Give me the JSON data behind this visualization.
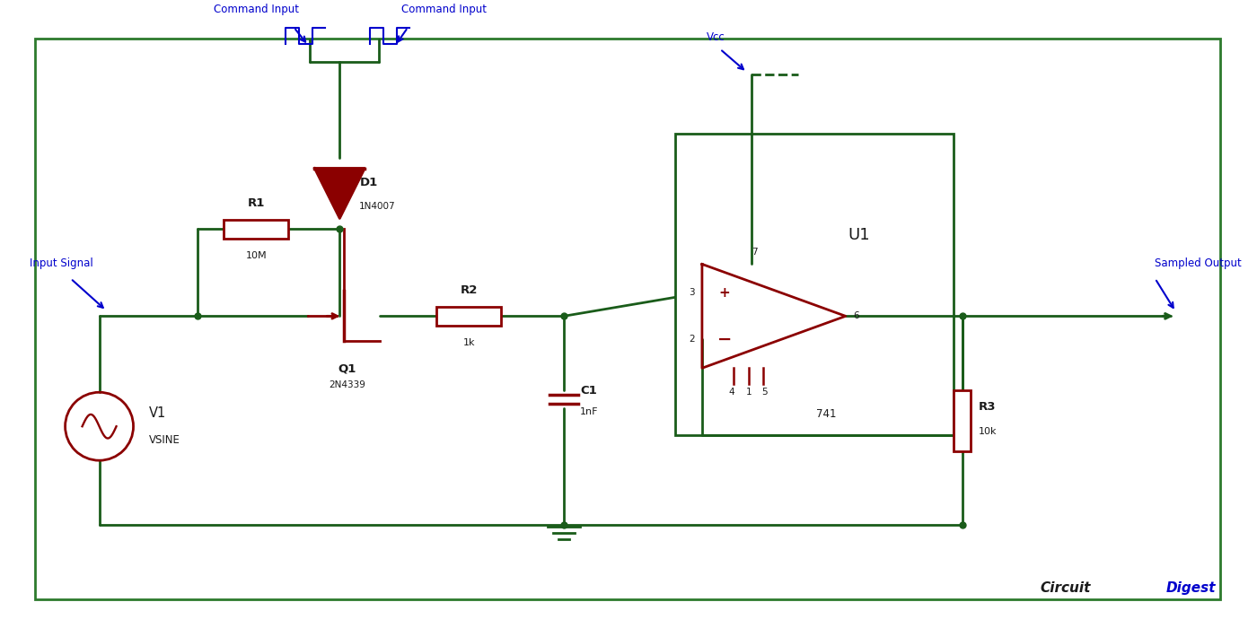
{
  "bg_color": "#ffffff",
  "wire_color": "#1a5c1a",
  "comp_color": "#8b0000",
  "label_color": "#0000cc",
  "text_color": "#1a1a1a",
  "border_color": "#2d7a2d",
  "fig_width": 14.0,
  "fig_height": 7.1,
  "dpi": 100,
  "lw": 2.0,
  "lw_comp": 2.0,
  "border": [
    0.38,
    0.42,
    13.22,
    6.26
  ]
}
